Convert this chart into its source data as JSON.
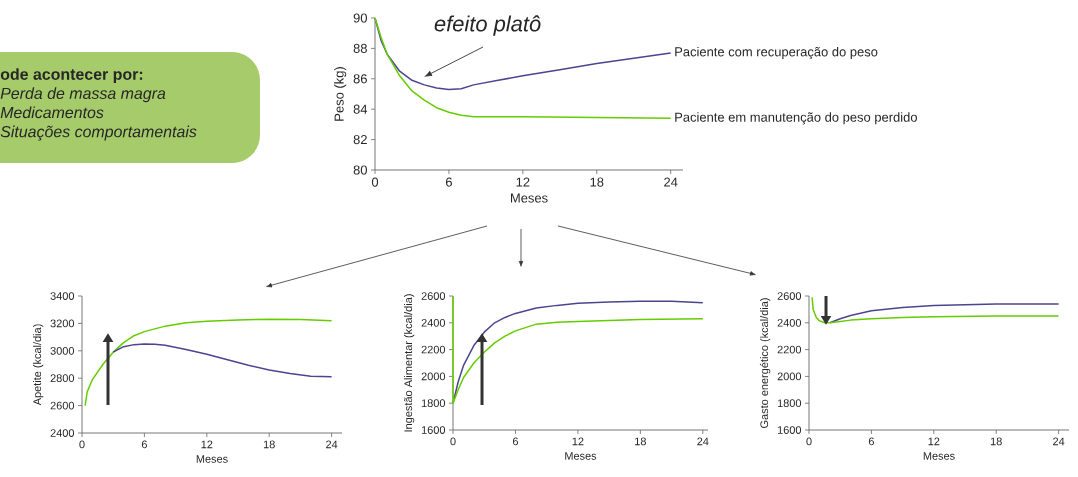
{
  "chart_data": [
    {
      "type": "other",
      "title": "ode acontecer por:",
      "annotations": [
        "Perda de massa magra",
        "Medicamentos",
        "Situações comportamentais"
      ]
    },
    {
      "type": "line",
      "xlabel": "Meses",
      "ylabel": "Peso (kg)",
      "xlim": [
        0,
        25
      ],
      "ylim": [
        80,
        90
      ],
      "xticks": [
        0,
        6,
        12,
        18,
        24
      ],
      "yticks": [
        80,
        82,
        84,
        86,
        88,
        90
      ],
      "annotations": [
        "efeito platô"
      ],
      "series": [
        {
          "name": "Paciente com recuperação do peso",
          "color": "#4b4590",
          "x": [
            0,
            0.5,
            1,
            2,
            3,
            4,
            5,
            6,
            7,
            8,
            10,
            12,
            15,
            18,
            21,
            24
          ],
          "values": [
            90,
            88.5,
            87.6,
            86.5,
            85.9,
            85.6,
            85.4,
            85.3,
            85.35,
            85.6,
            85.9,
            86.2,
            86.6,
            87.0,
            87.35,
            87.7
          ]
        },
        {
          "name": "Paciente em manutenção do peso perdido",
          "color": "#66cc00",
          "x": [
            0,
            0.5,
            1,
            2,
            3,
            4,
            5,
            6,
            7,
            8,
            10,
            12,
            18,
            24
          ],
          "values": [
            90,
            88.7,
            87.6,
            86.2,
            85.2,
            84.6,
            84.1,
            83.8,
            83.6,
            83.5,
            83.5,
            83.5,
            83.45,
            83.4
          ]
        }
      ]
    },
    {
      "type": "line",
      "xlabel": "Meses",
      "ylabel": "Apetite (kcal/dia)",
      "xlim": [
        0,
        25
      ],
      "ylim": [
        2400,
        3400
      ],
      "xticks": [
        0,
        6,
        12,
        18,
        24
      ],
      "yticks": [
        2400,
        2600,
        2800,
        3000,
        3200,
        3400
      ],
      "series": [
        {
          "color": "#66cc00",
          "x": [
            0.3,
            0.5,
            1,
            2,
            3,
            4,
            5,
            6,
            8,
            10,
            12,
            15,
            18,
            21,
            24
          ],
          "values": [
            2600,
            2700,
            2790,
            2900,
            2990,
            3060,
            3110,
            3140,
            3180,
            3205,
            3215,
            3225,
            3230,
            3228,
            3220
          ]
        },
        {
          "color": "#4b4590",
          "x": [
            3,
            4,
            5,
            6,
            7,
            8,
            10,
            12,
            14,
            16,
            18,
            20,
            22,
            24
          ],
          "values": [
            2990,
            3030,
            3045,
            3050,
            3048,
            3040,
            3010,
            2975,
            2935,
            2895,
            2860,
            2835,
            2815,
            2810
          ]
        }
      ]
    },
    {
      "type": "line",
      "xlabel": "Meses",
      "ylabel": "Ingestão Alimentar (kcal/dia)",
      "xlim": [
        0,
        24.5
      ],
      "ylim": [
        1600,
        2600
      ],
      "xticks": [
        0,
        6,
        12,
        18,
        24
      ],
      "yticks": [
        1600,
        1800,
        2000,
        2200,
        2400,
        2600
      ],
      "series": [
        {
          "color": "#4b4590",
          "x": [
            0,
            0.5,
            1,
            2,
            3,
            4,
            5,
            6,
            8,
            10,
            12,
            15,
            18,
            21,
            24
          ],
          "values": [
            1800,
            1960,
            2080,
            2230,
            2330,
            2400,
            2440,
            2470,
            2510,
            2530,
            2545,
            2555,
            2560,
            2560,
            2550
          ]
        },
        {
          "color": "#66cc00",
          "x": [
            0,
            0,
            0.5,
            1,
            2,
            3,
            4,
            5,
            6,
            8,
            10,
            12,
            18,
            24
          ],
          "values": [
            2600,
            1800,
            1900,
            1990,
            2100,
            2180,
            2250,
            2300,
            2340,
            2390,
            2405,
            2410,
            2425,
            2430
          ]
        }
      ]
    },
    {
      "type": "line",
      "xlabel": "Meses",
      "ylabel": "Gasto energético (kcal/dia)",
      "xlim": [
        0,
        25
      ],
      "ylim": [
        1600,
        2600
      ],
      "xticks": [
        0,
        6,
        12,
        18,
        24
      ],
      "yticks": [
        1600,
        1800,
        2000,
        2200,
        2400,
        2600
      ],
      "series": [
        {
          "color": "#4b4590",
          "x": [
            2,
            3,
            4,
            6,
            9,
            12,
            18,
            24
          ],
          "values": [
            2400,
            2430,
            2455,
            2490,
            2515,
            2530,
            2540,
            2540
          ]
        },
        {
          "color": "#66cc00",
          "x": [
            0.3,
            0.4,
            0.7,
            1,
            1.5,
            2,
            3,
            4,
            6,
            9,
            12,
            18,
            24
          ],
          "values": [
            2590,
            2500,
            2440,
            2415,
            2400,
            2400,
            2410,
            2420,
            2430,
            2440,
            2445,
            2450,
            2450
          ]
        }
      ]
    }
  ]
}
